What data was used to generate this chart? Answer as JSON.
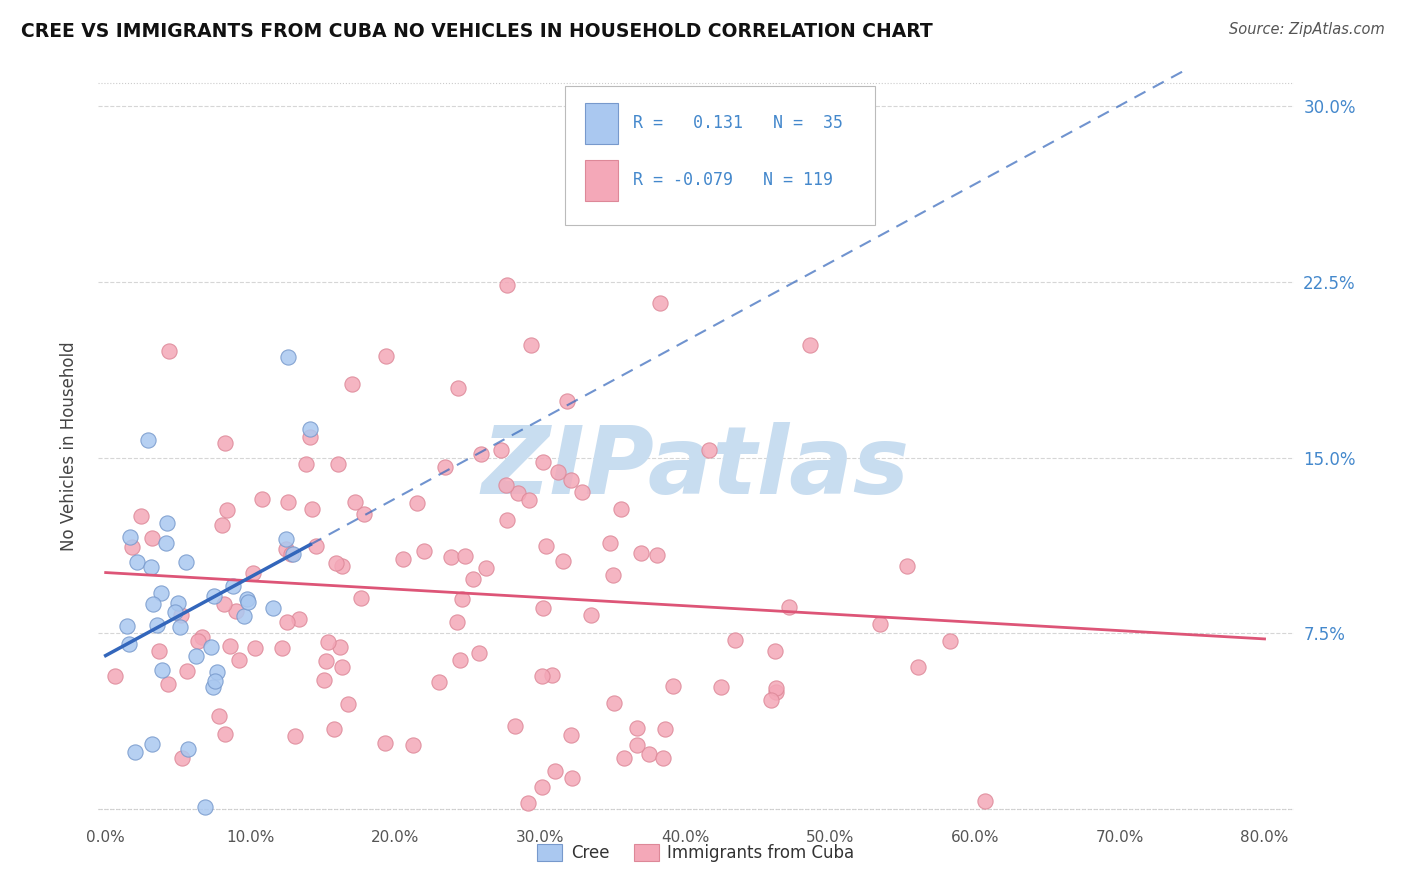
{
  "title": "CREE VS IMMIGRANTS FROM CUBA NO VEHICLES IN HOUSEHOLD CORRELATION CHART",
  "source": "Source: ZipAtlas.com",
  "ylabel": "No Vehicles in Household",
  "xlim": [
    -0.005,
    0.82
  ],
  "ylim": [
    -0.005,
    0.315
  ],
  "xticks": [
    0.0,
    0.1,
    0.2,
    0.3,
    0.4,
    0.5,
    0.6,
    0.7,
    0.8
  ],
  "xticklabels": [
    "0.0%",
    "10.0%",
    "20.0%",
    "30.0%",
    "40.0%",
    "50.0%",
    "60.0%",
    "70.0%",
    "80.0%"
  ],
  "yticks_right": [
    0.075,
    0.15,
    0.225,
    0.3
  ],
  "yticklabels_right": [
    "7.5%",
    "15.0%",
    "22.5%",
    "30.0%"
  ],
  "yticks_left": [
    0.0,
    0.075,
    0.15,
    0.225,
    0.3
  ],
  "cree_R": 0.131,
  "cree_N": 35,
  "cuba_R": -0.079,
  "cuba_N": 119,
  "cree_color": "#aac8f0",
  "cree_edge": "#7799cc",
  "cuba_color": "#f4a8b8",
  "cuba_edge": "#dd8898",
  "trend_cree_color": "#3366bb",
  "trend_cuba_color": "#dd5577",
  "legend_color": "#4488cc",
  "watermark": "ZIPatlas",
  "watermark_color": "#c8ddf0",
  "grid_color": "#cccccc",
  "background": "#ffffff"
}
